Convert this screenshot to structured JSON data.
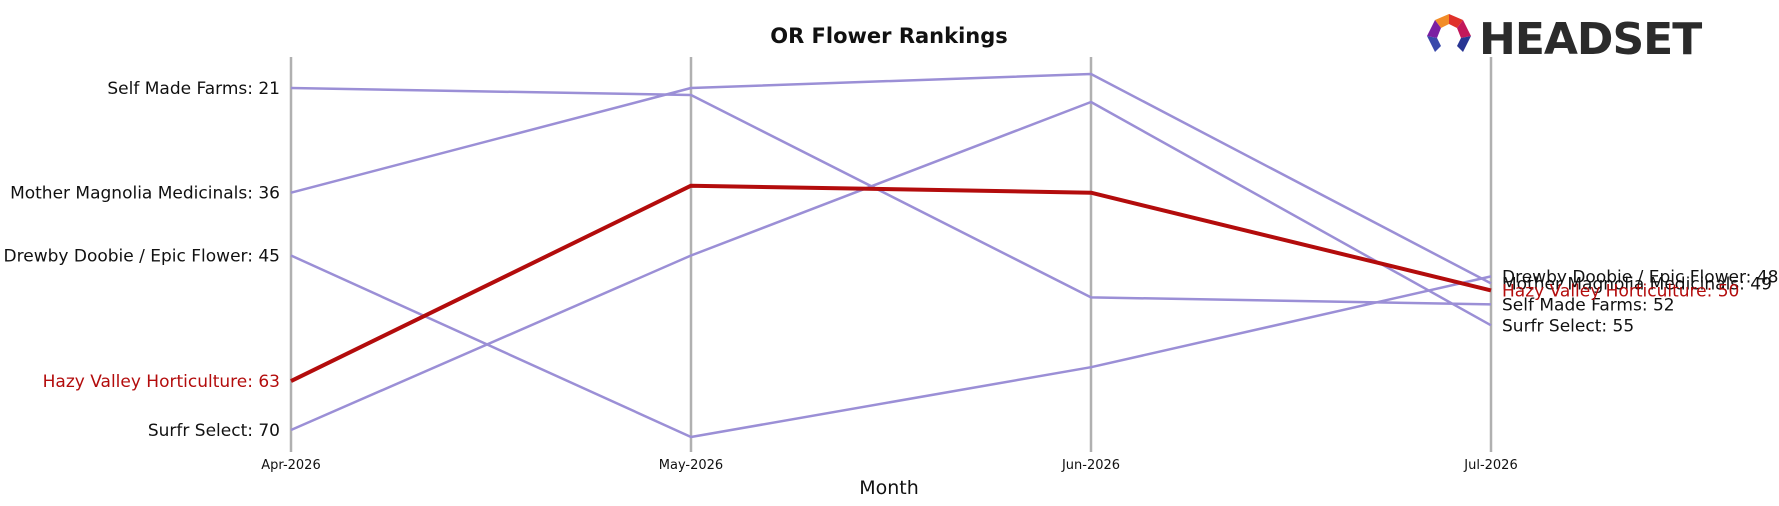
{
  "brand": {
    "logo_text": "HEADSET",
    "logo_colors": [
      "#e0312a",
      "#f28c28",
      "#c2185b",
      "#7b1fa2",
      "#283593",
      "#3949ab"
    ]
  },
  "chart_data": {
    "type": "line",
    "title": "OR Flower Rankings",
    "xlabel": "Month",
    "ylabel": "",
    "categories": [
      "Apr-2026",
      "May-2026",
      "Jun-2026",
      "Jul-2026"
    ],
    "y_inverted": true,
    "ylim": [
      18,
      74
    ],
    "grid": "vertical lines at each month",
    "colors": {
      "default": "#9b8fd6",
      "highlight": "#b30c0c",
      "axis": "#b0b0b0"
    },
    "series": [
      {
        "name": "Self Made Farms",
        "values": [
          21,
          22,
          51,
          52
        ],
        "highlight": false,
        "start_label": "Self Made Farms: 21",
        "end_label": "Self Made Farms: 52"
      },
      {
        "name": "Mother Magnolia Medicinals",
        "values": [
          36,
          21,
          19,
          49
        ],
        "highlight": false,
        "start_label": "Mother Magnolia Medicinals: 36",
        "end_label": "Mother Magnolia Medicinals: 49"
      },
      {
        "name": "Drewby Doobie / Epic Flower",
        "values": [
          45,
          71,
          61,
          48
        ],
        "highlight": false,
        "start_label": "Drewby Doobie / Epic Flower: 45",
        "end_label": "Drewby Doobie / Epic Flower: 48"
      },
      {
        "name": "Hazy Valley Horticulture",
        "values": [
          63,
          35,
          36,
          50
        ],
        "highlight": true,
        "start_label": "Hazy Valley Horticulture: 63",
        "end_label": "Hazy Valley Horticulture: 50"
      },
      {
        "name": "Surfr Select",
        "values": [
          70,
          45,
          23,
          55
        ],
        "highlight": false,
        "start_label": "Surfr Select: 70",
        "end_label": "Surfr Select: 55"
      }
    ]
  }
}
